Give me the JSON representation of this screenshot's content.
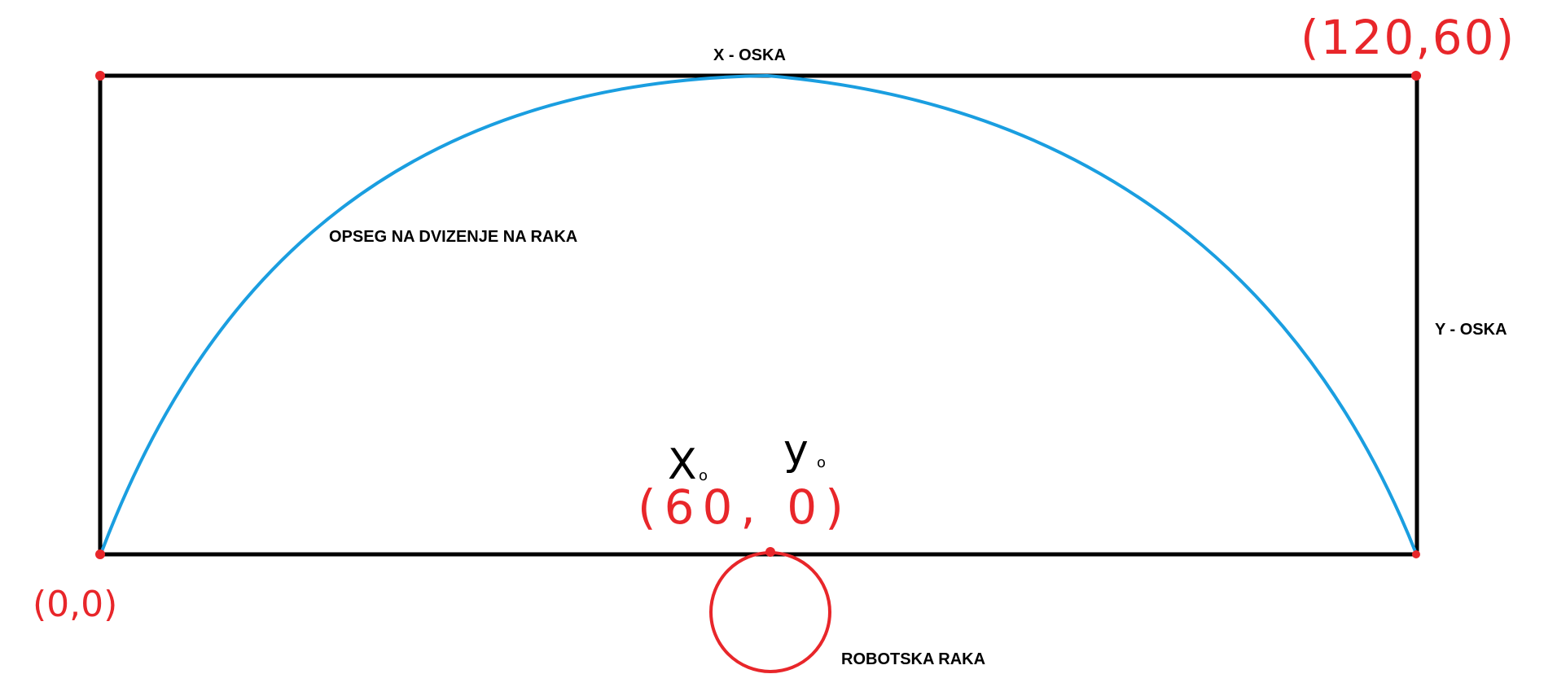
{
  "labels": {
    "x_axis": "X - OSKA",
    "y_axis": "Y - OSKA",
    "arc": "OPSEG NA DVIZENJE NA RAKA",
    "robot": "ROBOTSKA RAKA"
  },
  "coordinates": {
    "origin": "(0,0)",
    "top_right": "(120,60)",
    "arm_base": "(60, 0)"
  },
  "variables": {
    "x0_main": "X",
    "x0_sub": "o",
    "y0_main": "y",
    "y0_sub": "o"
  },
  "colors": {
    "frame": "#000000",
    "arc": "#1a9ee0",
    "annotation": "#e8262a"
  }
}
